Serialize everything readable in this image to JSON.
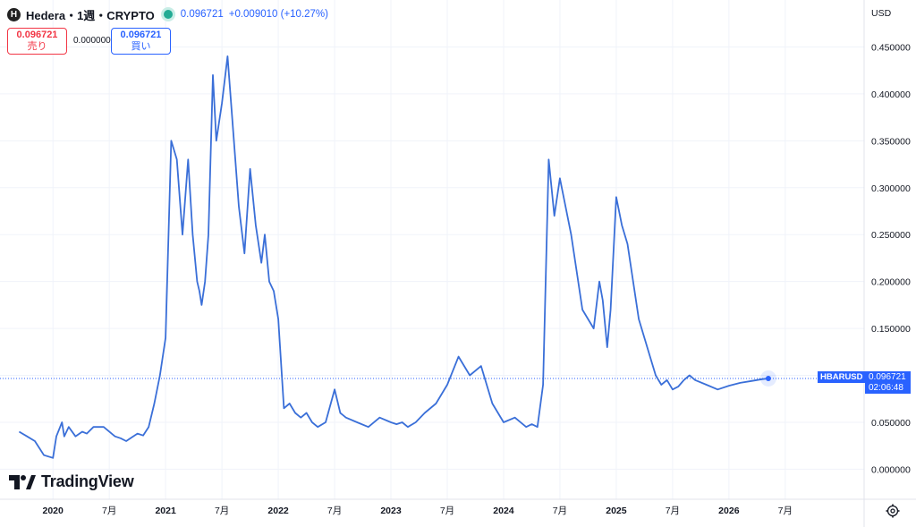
{
  "header": {
    "logo_letter": "H",
    "title": "Hedera・1週・CRYPTO",
    "price": "0.096721",
    "change": "+0.009010 (+10.27%)"
  },
  "trade": {
    "sell_price": "0.096721",
    "sell_label": "売り",
    "spread": "0.000000",
    "buy_price": "0.096721",
    "buy_label": "買い"
  },
  "currency": "USD",
  "last_price_tag": {
    "symbol": "HBARUSD",
    "price": "0.096721",
    "countdown": "02:06:48"
  },
  "watermark": "TradingView",
  "colors": {
    "line": "#3a6fd8",
    "accent": "#2962ff",
    "sell": "#f23645"
  },
  "chart_data": {
    "type": "line",
    "series": [
      {
        "x": [
          2019.7,
          2019.77,
          2019.84,
          2019.92,
          2020.0,
          2020.03,
          2020.08,
          2020.1,
          2020.14,
          2020.2,
          2020.26,
          2020.3,
          2020.36,
          2020.45,
          2020.55,
          2020.6,
          2020.65,
          2020.7,
          2020.75,
          2020.8,
          2020.85,
          2020.9,
          2020.95,
          2021.0,
          2021.05,
          2021.1,
          2021.15,
          2021.2,
          2021.24,
          2021.28,
          2021.3,
          2021.32,
          2021.35,
          2021.38,
          2021.42,
          2021.45,
          2021.5,
          2021.55,
          2021.6,
          2021.65,
          2021.7,
          2021.75,
          2021.8,
          2021.85,
          2021.88,
          2021.92,
          2021.96,
          2022.0,
          2022.05,
          2022.1,
          2022.15,
          2022.2,
          2022.25,
          2022.3,
          2022.35,
          2022.42,
          2022.5,
          2022.55,
          2022.6,
          2022.7,
          2022.8,
          2022.9,
          2023.0,
          2023.05,
          2023.1,
          2023.15,
          2023.22,
          2023.3,
          2023.4,
          2023.5,
          2023.6,
          2023.7,
          2023.8,
          2023.9,
          2024.0,
          2024.1,
          2024.2,
          2024.25,
          2024.3,
          2024.35,
          2024.4,
          2024.45,
          2024.5,
          2024.6,
          2024.7,
          2024.8,
          2024.85,
          2024.88,
          2024.92,
          2024.95,
          2025.0,
          2025.05,
          2025.1,
          2025.15,
          2025.2,
          2025.25,
          2025.3,
          2025.35,
          2025.4,
          2025.45,
          2025.5,
          2025.55,
          2025.6,
          2025.65,
          2025.7,
          2025.8,
          2025.9,
          2026.0,
          2026.1,
          2026.2,
          2026.3,
          2026.35
        ],
        "values": [
          0.04,
          0.035,
          0.03,
          0.015,
          0.012,
          0.035,
          0.05,
          0.035,
          0.045,
          0.035,
          0.04,
          0.038,
          0.045,
          0.045,
          0.035,
          0.033,
          0.03,
          0.034,
          0.038,
          0.036,
          0.045,
          0.07,
          0.1,
          0.14,
          0.35,
          0.33,
          0.25,
          0.33,
          0.25,
          0.2,
          0.19,
          0.175,
          0.2,
          0.25,
          0.42,
          0.35,
          0.39,
          0.44,
          0.36,
          0.28,
          0.23,
          0.32,
          0.26,
          0.22,
          0.25,
          0.2,
          0.19,
          0.16,
          0.065,
          0.07,
          0.06,
          0.055,
          0.06,
          0.05,
          0.045,
          0.05,
          0.085,
          0.06,
          0.055,
          0.05,
          0.045,
          0.055,
          0.05,
          0.048,
          0.05,
          0.045,
          0.05,
          0.06,
          0.07,
          0.09,
          0.12,
          0.1,
          0.11,
          0.07,
          0.05,
          0.055,
          0.045,
          0.048,
          0.045,
          0.09,
          0.33,
          0.27,
          0.31,
          0.25,
          0.17,
          0.15,
          0.2,
          0.18,
          0.13,
          0.17,
          0.29,
          0.26,
          0.24,
          0.2,
          0.16,
          0.14,
          0.12,
          0.1,
          0.09,
          0.095,
          0.085,
          0.088,
          0.095,
          0.1,
          0.095,
          0.09,
          0.085,
          0.089,
          0.092,
          0.094,
          0.096,
          0.096721
        ]
      }
    ],
    "xlabel": "",
    "ylabel": "",
    "x_tick_labels": [
      {
        "x": 2020.0,
        "label": "2020"
      },
      {
        "x": 2020.5,
        "label": "7月"
      },
      {
        "x": 2021.0,
        "label": "2021"
      },
      {
        "x": 2021.5,
        "label": "7月"
      },
      {
        "x": 2022.0,
        "label": "2022"
      },
      {
        "x": 2022.5,
        "label": "7月"
      },
      {
        "x": 2023.0,
        "label": "2023"
      },
      {
        "x": 2023.5,
        "label": "7月"
      },
      {
        "x": 2024.0,
        "label": "2024"
      },
      {
        "x": 2024.5,
        "label": "7月"
      },
      {
        "x": 2025.0,
        "label": "2025"
      },
      {
        "x": 2025.5,
        "label": "7月"
      },
      {
        "x": 2026.0,
        "label": "2026"
      },
      {
        "x": 2026.5,
        "label": "7月"
      }
    ],
    "y_ticks": [
      0.0,
      0.05,
      0.1,
      0.15,
      0.2,
      0.25,
      0.3,
      0.35,
      0.4,
      0.45
    ],
    "y_tick_labels": [
      "0.000000",
      "0.050000",
      "0.100000",
      "0.150000",
      "0.200000",
      "0.250000",
      "0.300000",
      "0.350000",
      "0.400000",
      "0.450000"
    ],
    "xlim": [
      2019.53,
      2027.2
    ],
    "ylim": [
      -0.032,
      0.5
    ],
    "last_value": 0.096721,
    "grid": true,
    "y_axis_position": "right"
  }
}
